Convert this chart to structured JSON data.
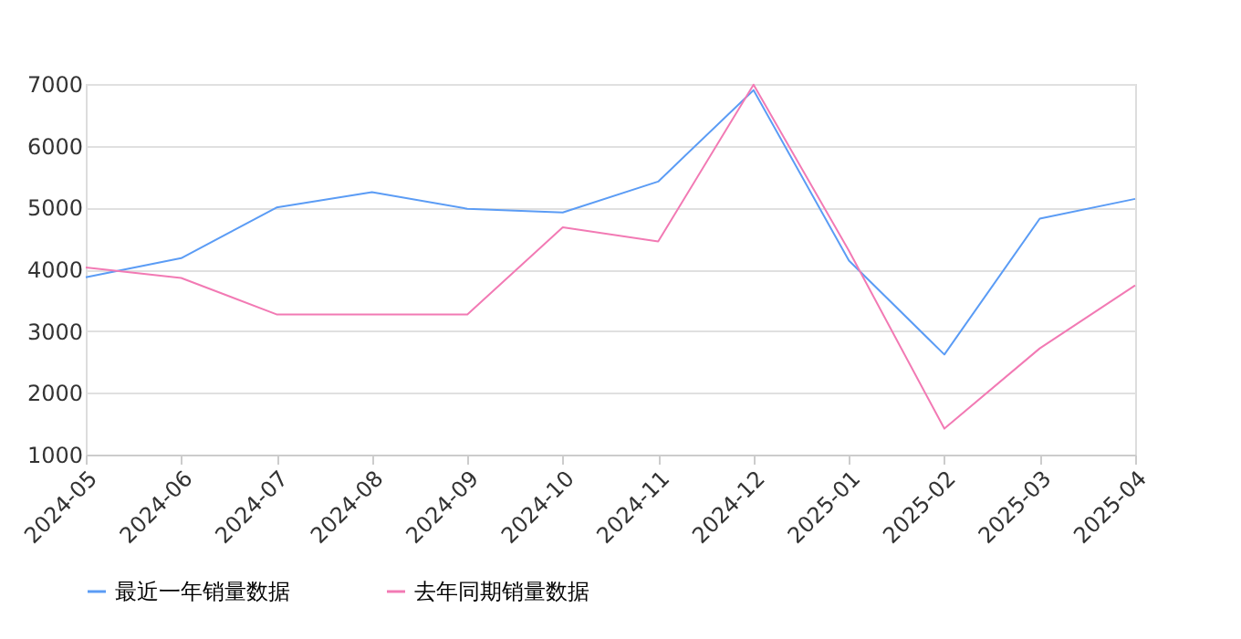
{
  "chart_data": {
    "type": "line",
    "categories": [
      "2024-05",
      "2024-06",
      "2024-07",
      "2024-08",
      "2024-09",
      "2024-10",
      "2024-11",
      "2024-12",
      "2025-01",
      "2025-02",
      "2025-03",
      "2025-04"
    ],
    "series": [
      {
        "name": "最近一年销量数据",
        "color": "#5b9cf5",
        "values": [
          3870,
          4180,
          5000,
          5250,
          4980,
          4920,
          5420,
          6900,
          4140,
          2620,
          4820,
          5140
        ]
      },
      {
        "name": "去年同期销量数据",
        "color": "#f27ab4",
        "values": [
          4030,
          3860,
          3270,
          3270,
          3270,
          4680,
          4450,
          6990,
          4300,
          1420,
          2720,
          3740
        ]
      }
    ],
    "ylim": [
      1000,
      7000
    ],
    "yticks": [
      1000,
      2000,
      3000,
      4000,
      5000,
      6000,
      7000
    ],
    "grid": "y",
    "legend": "bottom",
    "marker": "none",
    "line_style": "solid"
  }
}
